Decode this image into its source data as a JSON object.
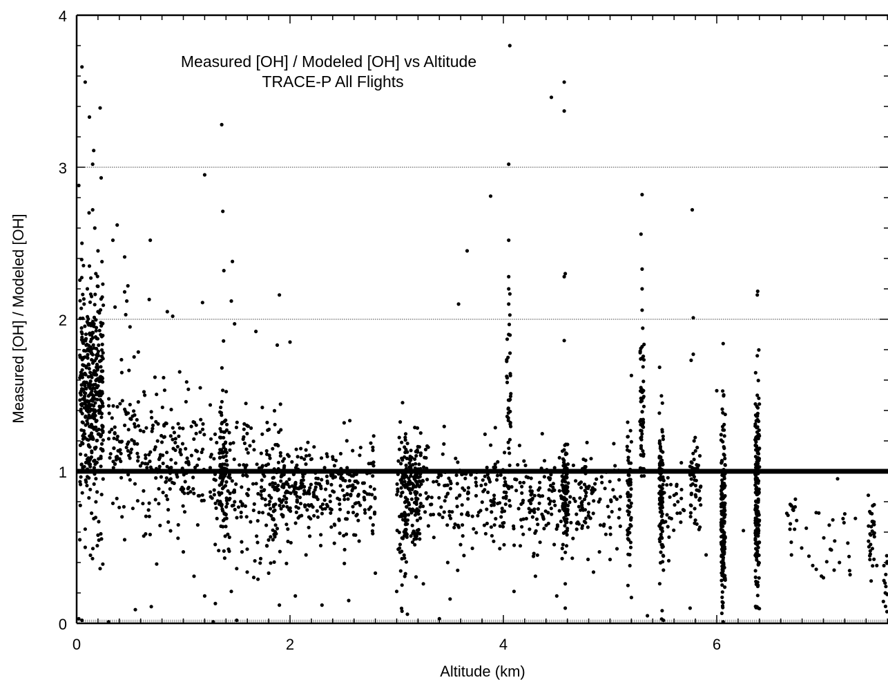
{
  "chart_data": {
    "type": "scatter",
    "title": "Measured [OH] / Modeled [OH] vs Altitude",
    "subtitle": "TRACE-P All Flights",
    "xlabel": "Altitude (km)",
    "ylabel": "Measured [OH] / Modeled [OH]",
    "xlim": [
      0,
      7.6
    ],
    "ylim": [
      0,
      4
    ],
    "x_ticks": [
      "0",
      "2",
      "4",
      "6"
    ],
    "y_ticks": [
      "0",
      "1",
      "2",
      "3",
      "4"
    ],
    "grid": "horizontal dotted at y = 2 and y = 3",
    "reference_line": {
      "y": 1,
      "style": "thick solid"
    },
    "marker_color": "#000000",
    "legend": "none",
    "series": [
      {
        "marker": "filled-circle",
        "points": [
          [
            0.02,
            2.88
          ],
          [
            0.05,
            3.66
          ],
          [
            0.08,
            3.56
          ],
          [
            0.12,
            3.33
          ],
          [
            0.16,
            3.11
          ],
          [
            0.15,
            3.02
          ],
          [
            0.22,
            3.39
          ],
          [
            0.23,
            2.93
          ],
          [
            0.15,
            2.72
          ],
          [
            0.17,
            2.6
          ],
          [
            0.2,
            2.45
          ],
          [
            0.05,
            2.5
          ],
          [
            0.12,
            2.35
          ],
          [
            0.18,
            2.3
          ],
          [
            0.1,
            2.2
          ],
          [
            0.14,
            2.15
          ],
          [
            0.07,
            2.1
          ],
          [
            0.2,
            2.05
          ],
          [
            0.38,
            2.62
          ],
          [
            0.34,
            2.52
          ],
          [
            0.45,
            2.41
          ],
          [
            0.48,
            2.22
          ],
          [
            0.45,
            2.18
          ],
          [
            0.47,
            2.12
          ],
          [
            0.36,
            2.08
          ],
          [
            0.46,
            2.03
          ],
          [
            0.5,
            1.95
          ],
          [
            0.69,
            2.52
          ],
          [
            0.68,
            2.13
          ],
          [
            0.85,
            2.05
          ],
          [
            0.9,
            2.02
          ],
          [
            1.2,
            2.95
          ],
          [
            1.36,
            3.28
          ],
          [
            1.37,
            2.71
          ],
          [
            1.38,
            2.32
          ],
          [
            1.46,
            2.38
          ],
          [
            1.45,
            2.12
          ],
          [
            1.48,
            1.97
          ],
          [
            1.18,
            2.11
          ],
          [
            1.9,
            2.16
          ],
          [
            1.68,
            1.92
          ],
          [
            2.0,
            1.85
          ],
          [
            1.88,
            1.83
          ],
          [
            4.06,
            3.8
          ],
          [
            4.05,
            3.02
          ],
          [
            4.05,
            2.52
          ],
          [
            4.05,
            2.28
          ],
          [
            4.05,
            2.2
          ],
          [
            4.05,
            2.1
          ],
          [
            4.05,
            1.9
          ],
          [
            3.88,
            2.81
          ],
          [
            3.66,
            2.45
          ],
          [
            3.58,
            2.1
          ],
          [
            4.45,
            3.46
          ],
          [
            4.57,
            3.56
          ],
          [
            4.57,
            3.37
          ],
          [
            4.58,
            2.3
          ],
          [
            4.57,
            2.28
          ],
          [
            4.57,
            1.86
          ],
          [
            5.3,
            2.82
          ],
          [
            5.29,
            2.56
          ],
          [
            5.3,
            2.33
          ],
          [
            5.3,
            2.2
          ],
          [
            5.3,
            2.06
          ],
          [
            5.3,
            1.82
          ],
          [
            5.77,
            2.72
          ],
          [
            5.78,
            2.01
          ],
          [
            5.78,
            1.77
          ],
          [
            5.76,
            1.73
          ],
          [
            6.06,
            1.84
          ],
          [
            6.38,
            2.16
          ],
          [
            6.38,
            1.76
          ],
          [
            6.38,
            1.5
          ],
          [
            6.0,
            1.53
          ],
          [
            5.2,
            1.63
          ],
          [
            0.02,
            0.03
          ],
          [
            0.05,
            0.02
          ],
          [
            0.3,
            0.01
          ],
          [
            0.55,
            0.09
          ],
          [
            1.28,
            0.01
          ],
          [
            1.5,
            0.02
          ],
          [
            3.1,
            0.06
          ],
          [
            3.4,
            0.03
          ],
          [
            5.5,
            0.02
          ],
          [
            6.06,
            0.01
          ],
          [
            0.03,
            0.55
          ],
          [
            0.08,
            0.5
          ],
          [
            0.22,
            0.36
          ],
          [
            0.2,
            0.58
          ],
          [
            0.45,
            0.55
          ],
          [
            0.7,
            0.11
          ],
          [
            0.75,
            0.39
          ],
          [
            0.95,
            0.56
          ],
          [
            1.0,
            0.47
          ],
          [
            1.1,
            0.31
          ],
          [
            1.2,
            0.18
          ],
          [
            1.3,
            0.13
          ],
          [
            1.45,
            0.21
          ],
          [
            1.5,
            0.36
          ],
          [
            1.55,
            0.47
          ],
          [
            1.7,
            0.29
          ],
          [
            1.8,
            0.33
          ],
          [
            1.9,
            0.12
          ],
          [
            2.05,
            0.18
          ],
          [
            2.15,
            0.45
          ],
          [
            2.3,
            0.12
          ],
          [
            2.55,
            0.15
          ],
          [
            2.8,
            0.33
          ],
          [
            3.0,
            0.21
          ],
          [
            3.05,
            0.08
          ],
          [
            3.25,
            0.26
          ],
          [
            3.5,
            0.16
          ],
          [
            4.1,
            0.21
          ],
          [
            4.3,
            0.31
          ],
          [
            4.5,
            0.18
          ],
          [
            4.58,
            0.26
          ],
          [
            4.58,
            0.1
          ],
          [
            4.9,
            0.47
          ],
          [
            5.0,
            0.42
          ],
          [
            5.2,
            0.17
          ],
          [
            5.35,
            0.05
          ],
          [
            5.5,
            0.35
          ],
          [
            5.75,
            0.1
          ],
          [
            5.9,
            0.45
          ],
          [
            6.25,
            0.61
          ],
          [
            6.7,
            0.45
          ],
          [
            6.9,
            0.38
          ],
          [
            7.0,
            0.3
          ],
          [
            7.1,
            0.35
          ],
          [
            7.15,
            0.4
          ],
          [
            7.25,
            0.32
          ],
          [
            7.5,
            0.38
          ],
          [
            7.58,
            0.2
          ],
          [
            7.3,
            0.69
          ],
          [
            7.2,
            0.72
          ]
        ]
      }
    ],
    "clusters": [
      {
        "x": 0.14,
        "x_jitter": 0.11,
        "y_mean": 1.5,
        "y_sd": 0.35,
        "n": 420
      },
      {
        "x": 0.45,
        "x_jitter": 0.15,
        "y_mean": 1.2,
        "y_sd": 0.22,
        "n": 90
      },
      {
        "x": 0.9,
        "x_jitter": 0.3,
        "y_mean": 1.08,
        "y_sd": 0.25,
        "n": 160
      },
      {
        "x": 1.37,
        "x_jitter": 0.04,
        "y_mean": 1.1,
        "y_sd": 0.28,
        "n": 70
      },
      {
        "x": 1.6,
        "x_jitter": 0.35,
        "y_mean": 0.9,
        "y_sd": 0.22,
        "n": 200
      },
      {
        "x": 2.3,
        "x_jitter": 0.5,
        "y_mean": 0.88,
        "y_sd": 0.17,
        "n": 330
      },
      {
        "x": 3.05,
        "x_jitter": 0.05,
        "y_mean": 0.82,
        "y_sd": 0.22,
        "n": 80
      },
      {
        "x": 3.15,
        "x_jitter": 0.08,
        "y_mean": 0.88,
        "y_sd": 0.2,
        "n": 120
      },
      {
        "x": 3.6,
        "x_jitter": 0.45,
        "y_mean": 0.85,
        "y_sd": 0.17,
        "n": 190
      },
      {
        "x": 4.05,
        "x_jitter": 0.02,
        "y_mean": 1.4,
        "y_sd": 0.3,
        "n": 35
      },
      {
        "x": 4.4,
        "x_jitter": 0.4,
        "y_mean": 0.82,
        "y_sd": 0.17,
        "n": 170
      },
      {
        "x": 4.58,
        "x_jitter": 0.03,
        "y_mean": 0.85,
        "y_sd": 0.2,
        "n": 90
      },
      {
        "x": 4.9,
        "x_jitter": 0.2,
        "y_mean": 0.82,
        "y_sd": 0.15,
        "n": 60
      },
      {
        "x": 5.18,
        "x_jitter": 0.02,
        "y_mean": 0.85,
        "y_sd": 0.28,
        "n": 60
      },
      {
        "x": 5.3,
        "x_jitter": 0.02,
        "y_mean": 1.35,
        "y_sd": 0.3,
        "n": 55
      },
      {
        "x": 5.48,
        "x_jitter": 0.02,
        "y_mean": 0.85,
        "y_sd": 0.3,
        "n": 110
      },
      {
        "x": 5.6,
        "x_jitter": 0.1,
        "y_mean": 0.75,
        "y_sd": 0.15,
        "n": 30
      },
      {
        "x": 5.8,
        "x_jitter": 0.05,
        "y_mean": 0.88,
        "y_sd": 0.15,
        "n": 50
      },
      {
        "x": 6.06,
        "x_jitter": 0.02,
        "y_mean": 0.7,
        "y_sd": 0.35,
        "n": 170
      },
      {
        "x": 6.38,
        "x_jitter": 0.02,
        "y_mean": 0.8,
        "y_sd": 0.35,
        "n": 190
      },
      {
        "x": 6.7,
        "x_jitter": 0.05,
        "y_mean": 0.7,
        "y_sd": 0.1,
        "n": 15
      },
      {
        "x": 7.0,
        "x_jitter": 0.3,
        "y_mean": 0.55,
        "y_sd": 0.18,
        "n": 20
      },
      {
        "x": 7.45,
        "x_jitter": 0.03,
        "y_mean": 0.6,
        "y_sd": 0.15,
        "n": 30
      },
      {
        "x": 7.58,
        "x_jitter": 0.02,
        "y_mean": 0.25,
        "y_sd": 0.1,
        "n": 12
      }
    ]
  }
}
